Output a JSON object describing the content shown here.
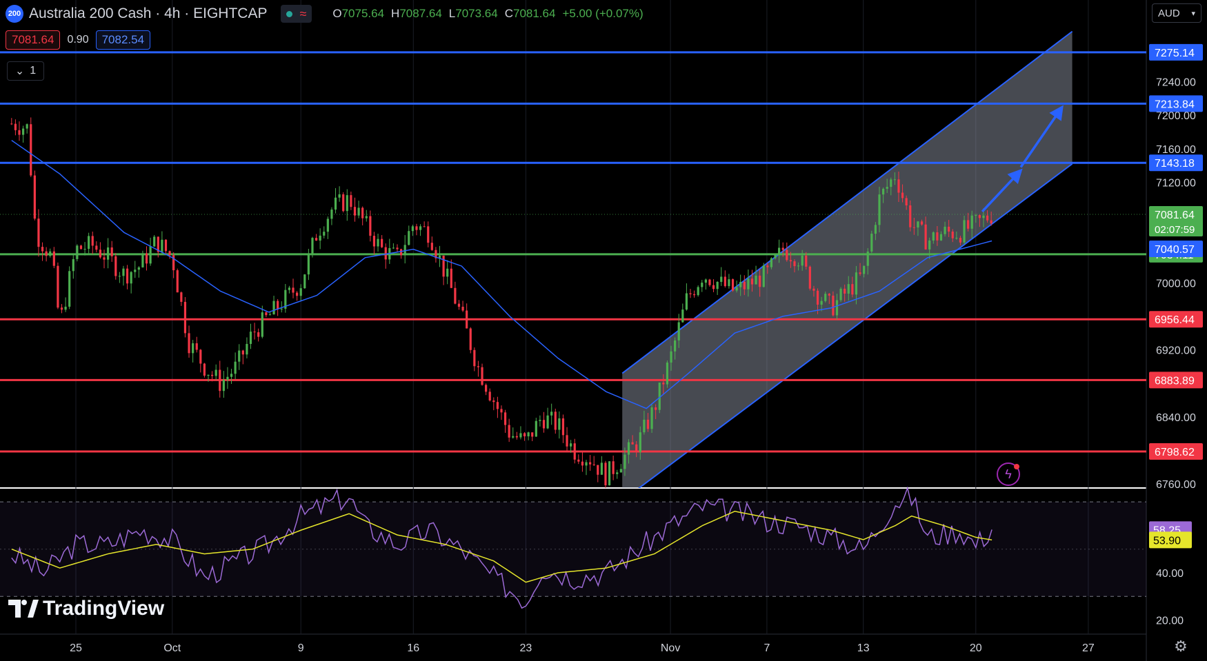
{
  "header": {
    "symbol_badge": "200",
    "title": "Australia 200 Cash · 4h · EIGHTCAP",
    "status_icon": "wave-icon",
    "ohlc": [
      {
        "key": "O",
        "value": "7075.64"
      },
      {
        "key": "H",
        "value": "7087.64"
      },
      {
        "key": "L",
        "value": "7073.64"
      },
      {
        "key": "C",
        "value": "7081.64"
      },
      {
        "key": "",
        "value": "+5.00 (+0.07%)"
      }
    ]
  },
  "trade": {
    "sell": "7081.64",
    "spread": "0.90",
    "buy": "7082.54"
  },
  "collapse": {
    "count": "1"
  },
  "currency": {
    "label": "AUD"
  },
  "logo": {
    "text": "TradingView"
  },
  "colors": {
    "up": "#4caf50",
    "down": "#f23645",
    "ma": "#2962ff",
    "resistance": "#2962ff",
    "support": "#f23645",
    "pivot": "#4caf50",
    "rsi": "#9c6ad6",
    "rsi_ma": "#e5e52b",
    "background": "#000000"
  },
  "chart_data": [
    {
      "type": "candlestick",
      "title": "Australia 200 Cash · 4h · EIGHTCAP",
      "yaxis": {
        "ticks": [
          "7240.00",
          "7200.00",
          "7160.00",
          "7120.00",
          "7000.00",
          "6920.00",
          "6840.00",
          "6760.00"
        ],
        "ylim": [
          6760,
          7300
        ]
      },
      "xaxis": {
        "ticks": [
          {
            "label": "25",
            "day": 25
          },
          {
            "label": "Oct",
            "day": 31
          },
          {
            "label": "9",
            "day": 39
          },
          {
            "label": "16",
            "day": 46
          },
          {
            "label": "23",
            "day": 53
          },
          {
            "label": "Nov",
            "day": 62
          },
          {
            "label": "7",
            "day": 68
          },
          {
            "label": "13",
            "day": 74
          },
          {
            "label": "20",
            "day": 81
          },
          {
            "label": "27",
            "day": 88
          }
        ],
        "unit": "days (Sep 1 = day 1)"
      },
      "close_path": [
        [
          21,
          7190
        ],
        [
          22,
          7185
        ],
        [
          22.5,
          7060
        ],
        [
          23.5,
          7030
        ],
        [
          24,
          6950
        ],
        [
          25,
          7040
        ],
        [
          26,
          7045
        ],
        [
          27,
          7030
        ],
        [
          28,
          7010
        ],
        [
          29,
          7020
        ],
        [
          30,
          7050
        ],
        [
          31,
          7030
        ],
        [
          32,
          6930
        ],
        [
          33,
          6900
        ],
        [
          34,
          6880
        ],
        [
          35,
          6900
        ],
        [
          36,
          6940
        ],
        [
          37,
          6960
        ],
        [
          38,
          6980
        ],
        [
          39,
          7000
        ],
        [
          40,
          7060
        ],
        [
          41,
          7090
        ],
        [
          42,
          7100
        ],
        [
          43,
          7070
        ],
        [
          44,
          7040
        ],
        [
          45,
          7030
        ],
        [
          46,
          7070
        ],
        [
          47,
          7060
        ],
        [
          48,
          7010
        ],
        [
          49,
          6960
        ],
        [
          50,
          6900
        ],
        [
          51,
          6860
        ],
        [
          52,
          6820
        ],
        [
          53,
          6810
        ],
        [
          54,
          6840
        ],
        [
          55,
          6830
        ],
        [
          56,
          6800
        ],
        [
          57,
          6790
        ],
        [
          58,
          6770
        ],
        [
          59,
          6790
        ],
        [
          60,
          6810
        ],
        [
          61,
          6850
        ],
        [
          62,
          6910
        ],
        [
          63,
          6980
        ],
        [
          64,
          7010
        ],
        [
          65,
          7000
        ],
        [
          66,
          6990
        ],
        [
          67,
          7000
        ],
        [
          68,
          7010
        ],
        [
          69,
          7040
        ],
        [
          70,
          7030
        ],
        [
          71,
          6990
        ],
        [
          72,
          6970
        ],
        [
          73,
          6990
        ],
        [
          74,
          7010
        ],
        [
          75,
          7100
        ],
        [
          76,
          7130
        ],
        [
          77,
          7070
        ],
        [
          78,
          7050
        ],
        [
          79,
          7060
        ],
        [
          80,
          7060
        ],
        [
          81,
          7070
        ],
        [
          82,
          7081.64
        ]
      ],
      "moving_average": [
        [
          21,
          7170
        ],
        [
          24,
          7130
        ],
        [
          28,
          7060
        ],
        [
          31,
          7030
        ],
        [
          34,
          6990
        ],
        [
          37,
          6965
        ],
        [
          40,
          6985
        ],
        [
          43,
          7030
        ],
        [
          46,
          7040
        ],
        [
          49,
          7020
        ],
        [
          52,
          6960
        ],
        [
          55,
          6910
        ],
        [
          58,
          6870
        ],
        [
          60.5,
          6850
        ],
        [
          63,
          6890
        ],
        [
          66,
          6940
        ],
        [
          69,
          6960
        ],
        [
          72,
          6970
        ],
        [
          75,
          6990
        ],
        [
          78,
          7030
        ],
        [
          82,
          7050
        ]
      ],
      "levels": [
        {
          "value": 7275.14,
          "label": "7275.14",
          "kind": "resistance"
        },
        {
          "value": 7213.84,
          "label": "7213.84",
          "kind": "resistance"
        },
        {
          "value": 7143.18,
          "label": "7143.18",
          "kind": "resistance"
        },
        {
          "value": 7034.11,
          "label": "7034.11",
          "kind": "pivot"
        },
        {
          "value": 6956.44,
          "label": "6956.44",
          "kind": "support"
        },
        {
          "value": 6883.89,
          "label": "6883.89",
          "kind": "support"
        },
        {
          "value": 6798.62,
          "label": "6798.62",
          "kind": "support"
        }
      ],
      "price_labels": [
        {
          "value": 7081.64,
          "label": "7081.64",
          "sub": "02:07:59",
          "kind": "last"
        },
        {
          "value": 7040.57,
          "label": "7040.57",
          "kind": "ma"
        }
      ],
      "channel": {
        "lower": [
          [
            59,
            6740
          ],
          [
            87,
            7142
          ]
        ],
        "upper": [
          [
            59,
            6892
          ],
          [
            87,
            7300
          ]
        ]
      },
      "arrows": [
        [
          [
            81.4,
            7085
          ],
          [
            83.6,
            7130
          ]
        ],
        [
          [
            83.8,
            7138
          ],
          [
            86.2,
            7205
          ]
        ]
      ]
    },
    {
      "type": "line",
      "title": "RSI",
      "yaxis": {
        "ticks": [
          "40.00",
          "20.00"
        ],
        "ylim": [
          15,
          75
        ],
        "bands": [
          70,
          30
        ]
      },
      "price_labels": [
        {
          "value": 58.25,
          "label": "58.25",
          "kind": "rsi"
        },
        {
          "value": 53.9,
          "label": "53.90",
          "kind": "rsi_ma"
        }
      ],
      "rsi": [
        [
          21,
          48
        ],
        [
          23,
          40
        ],
        [
          25,
          52
        ],
        [
          27,
          52
        ],
        [
          29,
          58
        ],
        [
          31,
          54
        ],
        [
          33,
          38
        ],
        [
          35,
          45
        ],
        [
          37,
          52
        ],
        [
          39,
          64
        ],
        [
          41,
          70
        ],
        [
          42,
          72
        ],
        [
          43,
          60
        ],
        [
          45,
          52
        ],
        [
          47,
          58
        ],
        [
          49,
          50
        ],
        [
          51,
          38
        ],
        [
          53,
          28
        ],
        [
          54,
          42
        ],
        [
          56,
          38
        ],
        [
          58,
          40
        ],
        [
          60,
          50
        ],
        [
          62,
          60
        ],
        [
          64,
          68
        ],
        [
          66,
          66
        ],
        [
          68,
          62
        ],
        [
          70,
          60
        ],
        [
          72,
          55
        ],
        [
          74,
          50
        ],
        [
          76,
          70
        ],
        [
          77,
          72
        ],
        [
          78,
          55
        ],
        [
          80,
          58
        ],
        [
          81,
          52
        ],
        [
          82,
          58.25
        ]
      ],
      "rsi_ma": [
        [
          21,
          50
        ],
        [
          24,
          42
        ],
        [
          27,
          48
        ],
        [
          30,
          52
        ],
        [
          33,
          48
        ],
        [
          36,
          50
        ],
        [
          39,
          58
        ],
        [
          42,
          65
        ],
        [
          45,
          56
        ],
        [
          48,
          52
        ],
        [
          51,
          45
        ],
        [
          53,
          36
        ],
        [
          55,
          40
        ],
        [
          58,
          42
        ],
        [
          61,
          48
        ],
        [
          64,
          60
        ],
        [
          66,
          66
        ],
        [
          69,
          62
        ],
        [
          72,
          58
        ],
        [
          74,
          54
        ],
        [
          76,
          60
        ],
        [
          77,
          64
        ],
        [
          79,
          60
        ],
        [
          81,
          55
        ],
        [
          82,
          53.9
        ]
      ]
    }
  ]
}
